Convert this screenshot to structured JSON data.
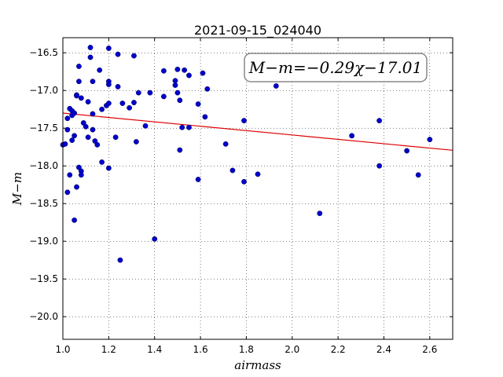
{
  "chart_data": {
    "type": "scatter",
    "title": "2021-09-15_024040",
    "xlabel": "airmass",
    "ylabel": "M−m",
    "xlim": [
      1.0,
      2.7
    ],
    "ylim": [
      -20.3,
      -16.3
    ],
    "y_inverted": true,
    "grid": true,
    "x_ticks": [
      "1.0",
      "1.2",
      "1.4",
      "1.6",
      "1.8",
      "2.0",
      "2.2",
      "2.4",
      "2.6"
    ],
    "y_ticks": [
      "−16.5",
      "−17.0",
      "−17.5",
      "−18.0",
      "−18.5",
      "−19.0",
      "−19.5",
      "−20.0"
    ],
    "annotation": "M−m=−0.29χ−17.01",
    "point_color": "#0000cc",
    "line_color": "#dd0000",
    "fit": {
      "slope": -0.29,
      "intercept": -17.01
    },
    "points": [
      {
        "x": 1.0,
        "y": -17.72
      },
      {
        "x": 1.01,
        "y": -17.71
      },
      {
        "x": 1.02,
        "y": -17.37
      },
      {
        "x": 1.02,
        "y": -17.52
      },
      {
        "x": 1.02,
        "y": -18.35
      },
      {
        "x": 1.03,
        "y": -18.12
      },
      {
        "x": 1.03,
        "y": -17.24
      },
      {
        "x": 1.04,
        "y": -17.27
      },
      {
        "x": 1.04,
        "y": -17.33
      },
      {
        "x": 1.04,
        "y": -17.66
      },
      {
        "x": 1.05,
        "y": -17.3
      },
      {
        "x": 1.05,
        "y": -17.6
      },
      {
        "x": 1.05,
        "y": -18.72
      },
      {
        "x": 1.06,
        "y": -17.06
      },
      {
        "x": 1.06,
        "y": -17.07
      },
      {
        "x": 1.06,
        "y": -18.28
      },
      {
        "x": 1.07,
        "y": -18.02
      },
      {
        "x": 1.07,
        "y": -16.68
      },
      {
        "x": 1.07,
        "y": -16.88
      },
      {
        "x": 1.08,
        "y": -17.1
      },
      {
        "x": 1.08,
        "y": -18.07
      },
      {
        "x": 1.08,
        "y": -18.12
      },
      {
        "x": 1.09,
        "y": -17.43
      },
      {
        "x": 1.1,
        "y": -17.48
      },
      {
        "x": 1.11,
        "y": -17.15
      },
      {
        "x": 1.11,
        "y": -17.62
      },
      {
        "x": 1.12,
        "y": -16.43
      },
      {
        "x": 1.12,
        "y": -16.56
      },
      {
        "x": 1.13,
        "y": -17.52
      },
      {
        "x": 1.13,
        "y": -16.88
      },
      {
        "x": 1.13,
        "y": -17.31
      },
      {
        "x": 1.14,
        "y": -17.67
      },
      {
        "x": 1.15,
        "y": -17.72
      },
      {
        "x": 1.16,
        "y": -16.73
      },
      {
        "x": 1.17,
        "y": -17.95
      },
      {
        "x": 1.17,
        "y": -17.25
      },
      {
        "x": 1.19,
        "y": -17.2
      },
      {
        "x": 1.2,
        "y": -16.44
      },
      {
        "x": 1.2,
        "y": -16.88
      },
      {
        "x": 1.2,
        "y": -16.92
      },
      {
        "x": 1.2,
        "y": -17.17
      },
      {
        "x": 1.2,
        "y": -18.03
      },
      {
        "x": 1.23,
        "y": -17.62
      },
      {
        "x": 1.24,
        "y": -16.52
      },
      {
        "x": 1.24,
        "y": -16.95
      },
      {
        "x": 1.25,
        "y": -19.25
      },
      {
        "x": 1.26,
        "y": -17.17
      },
      {
        "x": 1.29,
        "y": -17.23
      },
      {
        "x": 1.31,
        "y": -16.54
      },
      {
        "x": 1.31,
        "y": -17.16
      },
      {
        "x": 1.32,
        "y": -17.68
      },
      {
        "x": 1.33,
        "y": -17.03
      },
      {
        "x": 1.36,
        "y": -17.47
      },
      {
        "x": 1.38,
        "y": -17.03
      },
      {
        "x": 1.4,
        "y": -18.97
      },
      {
        "x": 1.44,
        "y": -16.74
      },
      {
        "x": 1.44,
        "y": -17.08
      },
      {
        "x": 1.49,
        "y": -16.87
      },
      {
        "x": 1.49,
        "y": -16.93
      },
      {
        "x": 1.5,
        "y": -16.72
      },
      {
        "x": 1.5,
        "y": -17.03
      },
      {
        "x": 1.51,
        "y": -17.13
      },
      {
        "x": 1.51,
        "y": -17.79
      },
      {
        "x": 1.52,
        "y": -17.49
      },
      {
        "x": 1.53,
        "y": -16.73
      },
      {
        "x": 1.55,
        "y": -16.8
      },
      {
        "x": 1.55,
        "y": -17.49
      },
      {
        "x": 1.59,
        "y": -17.18
      },
      {
        "x": 1.59,
        "y": -18.18
      },
      {
        "x": 1.61,
        "y": -16.77
      },
      {
        "x": 1.62,
        "y": -17.35
      },
      {
        "x": 1.63,
        "y": -16.98
      },
      {
        "x": 1.71,
        "y": -17.71
      },
      {
        "x": 1.74,
        "y": -18.06
      },
      {
        "x": 1.79,
        "y": -17.4
      },
      {
        "x": 1.79,
        "y": -18.21
      },
      {
        "x": 1.85,
        "y": -18.11
      },
      {
        "x": 1.93,
        "y": -16.94
      },
      {
        "x": 2.12,
        "y": -18.63
      },
      {
        "x": 2.26,
        "y": -17.6
      },
      {
        "x": 2.38,
        "y": -17.4
      },
      {
        "x": 2.38,
        "y": -18.0
      },
      {
        "x": 2.5,
        "y": -17.8
      },
      {
        "x": 2.55,
        "y": -18.12
      },
      {
        "x": 2.6,
        "y": -17.65
      }
    ]
  }
}
